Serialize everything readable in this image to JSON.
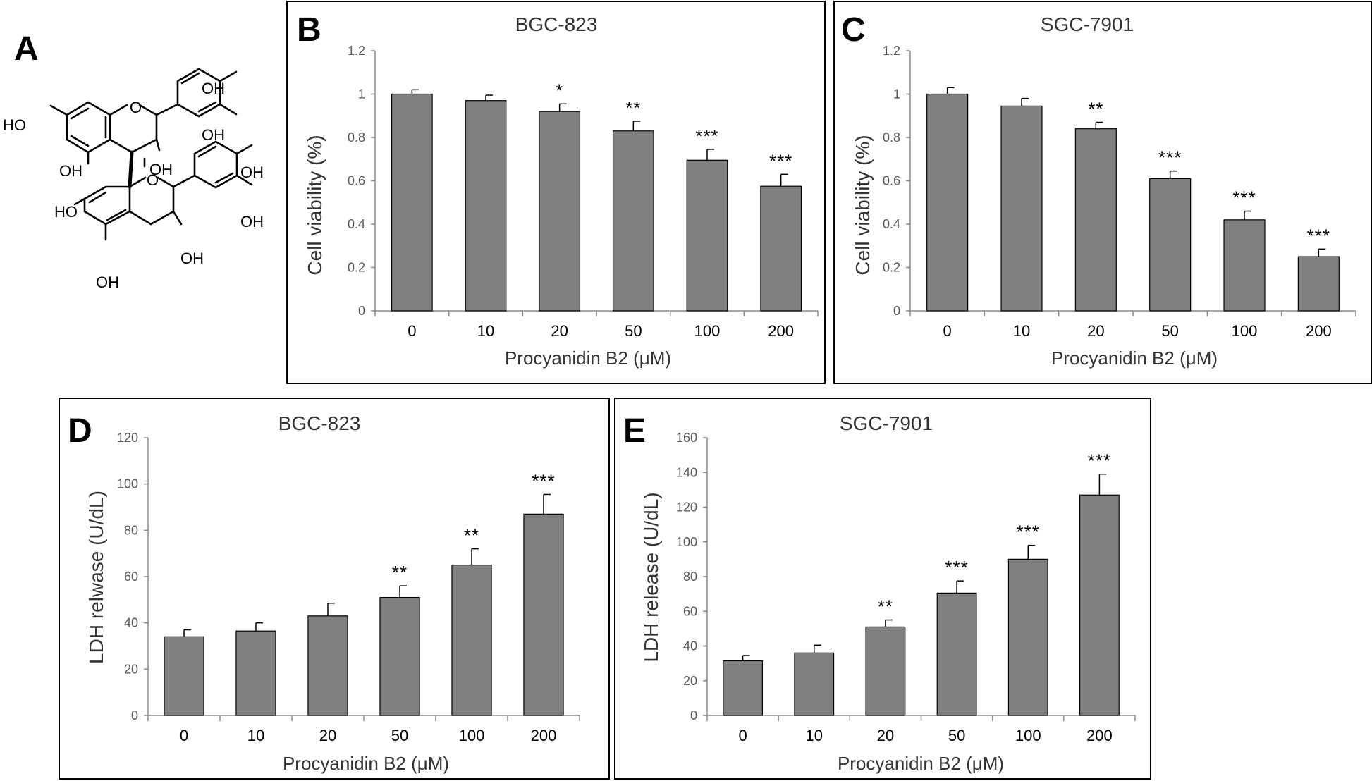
{
  "colors": {
    "bar": "#808080",
    "frame": "#000000",
    "text": "#000000",
    "tick_text": "#595959",
    "axis": "#8c8c8c"
  },
  "structure_panel": {
    "letter": "A",
    "labels": [
      "OH",
      "OH",
      "HO",
      "OH",
      "OH",
      "HO",
      "OH",
      "OH",
      "OH",
      "OH"
    ]
  },
  "chart_data": [
    {
      "panel": "B",
      "type": "bar",
      "title": "BGC-823",
      "xlabel": "Procyanidin B2 (μM)",
      "ylabel": "Cell viability (%)",
      "categories": [
        "0",
        "10",
        "20",
        "50",
        "100",
        "200"
      ],
      "values": [
        1.0,
        0.97,
        0.92,
        0.83,
        0.695,
        0.575
      ],
      "errors": [
        0.02,
        0.025,
        0.035,
        0.045,
        0.05,
        0.055
      ],
      "significance": [
        "",
        "",
        "*",
        "**",
        "***",
        "***"
      ],
      "ylim": [
        0,
        1.2
      ],
      "yticks": [
        "0",
        "0.2",
        "0.4",
        "0.6",
        "0.8",
        "1",
        "1.2"
      ],
      "ytick_values": [
        0,
        0.2,
        0.4,
        0.6,
        0.8,
        1.0,
        1.2
      ]
    },
    {
      "panel": "C",
      "type": "bar",
      "title": "SGC-7901",
      "xlabel": "Procyanidin B2 (μM)",
      "ylabel": "Cell viability (%)",
      "categories": [
        "0",
        "10",
        "20",
        "50",
        "100",
        "200"
      ],
      "values": [
        1.0,
        0.945,
        0.84,
        0.61,
        0.42,
        0.25
      ],
      "errors": [
        0.03,
        0.035,
        0.03,
        0.035,
        0.04,
        0.035
      ],
      "significance": [
        "",
        "",
        "**",
        "***",
        "***",
        "***"
      ],
      "ylim": [
        0,
        1.2
      ],
      "yticks": [
        "0",
        "0.2",
        "0.4",
        "0.6",
        "0.8",
        "1",
        "1.2"
      ],
      "ytick_values": [
        0,
        0.2,
        0.4,
        0.6,
        0.8,
        1.0,
        1.2
      ]
    },
    {
      "panel": "D",
      "type": "bar",
      "title": "BGC-823",
      "xlabel": "Procyanidin B2 (μM)",
      "ylabel": "LDH relwase (U/dL)",
      "categories": [
        "0",
        "10",
        "20",
        "50",
        "100",
        "200"
      ],
      "values": [
        34,
        36.5,
        43,
        51,
        65,
        87
      ],
      "errors": [
        3,
        3.5,
        5.5,
        5,
        7,
        8.5
      ],
      "significance": [
        "",
        "",
        "",
        "**",
        "**",
        "***"
      ],
      "ylim": [
        0,
        120
      ],
      "yticks": [
        "0",
        "20",
        "40",
        "60",
        "80",
        "100",
        "120"
      ],
      "ytick_values": [
        0,
        20,
        40,
        60,
        80,
        100,
        120
      ]
    },
    {
      "panel": "E",
      "type": "bar",
      "title": "SGC-7901",
      "xlabel": "Procyanidin B2 (μM)",
      "ylabel": "LDH release (U/dL)",
      "categories": [
        "0",
        "10",
        "20",
        "50",
        "100",
        "200"
      ],
      "values": [
        31.5,
        36,
        51,
        70.5,
        90,
        127
      ],
      "errors": [
        3,
        4.5,
        4,
        7,
        8,
        12
      ],
      "significance": [
        "",
        "",
        "**",
        "***",
        "***",
        "***"
      ],
      "ylim": [
        0,
        160
      ],
      "yticks": [
        "0",
        "20",
        "40",
        "60",
        "80",
        "100",
        "120",
        "140",
        "160"
      ],
      "ytick_values": [
        0,
        20,
        40,
        60,
        80,
        100,
        120,
        140,
        160
      ]
    }
  ]
}
